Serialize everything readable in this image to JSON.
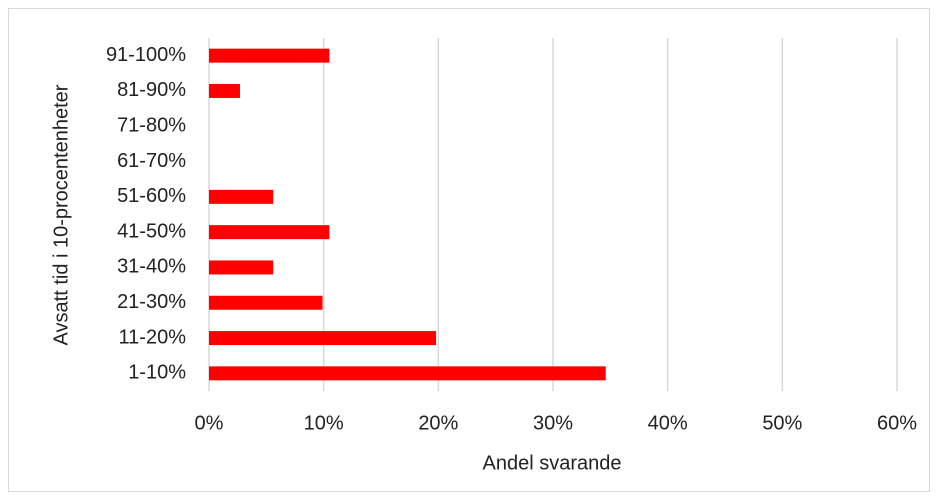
{
  "chart_data": {
    "type": "hbar",
    "categories": [
      "1-10%",
      "11-20%",
      "21-30%",
      "31-40%",
      "41-50%",
      "51-60%",
      "61-70%",
      "71-80%",
      "81-90%",
      "91-100%"
    ],
    "values": [
      34.6,
      19.8,
      9.9,
      5.6,
      10.5,
      5.6,
      0,
      0,
      2.7,
      10.5
    ],
    "color": "#ff0000",
    "xlabel": "Andel svarande",
    "ylabel": "Avsatt tid i 10-procentenheter",
    "xlim": [
      0,
      60
    ],
    "xticks": [
      {
        "value": 0,
        "label": "0%"
      },
      {
        "value": 10,
        "label": "10%"
      },
      {
        "value": 20,
        "label": "20%"
      },
      {
        "value": 30,
        "label": "30%"
      },
      {
        "value": 40,
        "label": "40%"
      },
      {
        "value": 50,
        "label": "50%"
      },
      {
        "value": 60,
        "label": "60%"
      }
    ],
    "grid": true
  }
}
